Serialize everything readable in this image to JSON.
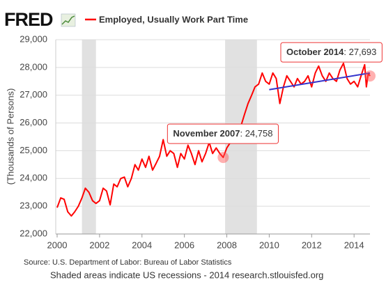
{
  "chart_data": {
    "type": "line",
    "logo": "FRED",
    "y_label": "(Thousands of Persons)",
    "source": "Source: U.S. Department of Labor: Bureau of Labor Statistics",
    "footer": "Shaded areas indicate US recessions - 2014 research.stlouisfed.org",
    "xlim": [
      2000,
      2014.75
    ],
    "ylim": [
      22000,
      29000
    ],
    "xticks": [
      2000,
      2002,
      2004,
      2006,
      2008,
      2010,
      2012,
      2014
    ],
    "yticks": [
      {
        "value": 22000,
        "label": "22,000"
      },
      {
        "value": 23000,
        "label": "23,000"
      },
      {
        "value": 24000,
        "label": "24,000"
      },
      {
        "value": 25000,
        "label": "25,000"
      },
      {
        "value": 26000,
        "label": "26,000"
      },
      {
        "value": 27000,
        "label": "27,000"
      },
      {
        "value": 28000,
        "label": "28,000"
      },
      {
        "value": 29000,
        "label": "29,000"
      }
    ],
    "grid": true,
    "recessions": [
      [
        2001.17,
        2001.83
      ],
      [
        2007.92,
        2009.42
      ]
    ],
    "recession_color": "#e1e1e1",
    "series": [
      {
        "name": "Employed, Usually Work Part Time",
        "color": "#ff0000",
        "x": [
          2000.0,
          2000.17,
          2000.33,
          2000.5,
          2000.67,
          2000.83,
          2001.0,
          2001.17,
          2001.33,
          2001.5,
          2001.67,
          2001.83,
          2002.0,
          2002.17,
          2002.33,
          2002.5,
          2002.67,
          2002.83,
          2003.0,
          2003.17,
          2003.33,
          2003.5,
          2003.67,
          2003.83,
          2004.0,
          2004.17,
          2004.33,
          2004.5,
          2004.67,
          2004.83,
          2005.0,
          2005.17,
          2005.33,
          2005.5,
          2005.67,
          2005.83,
          2006.0,
          2006.17,
          2006.33,
          2006.5,
          2006.67,
          2006.83,
          2007.0,
          2007.17,
          2007.33,
          2007.5,
          2007.67,
          2007.83,
          2008.0,
          2008.17,
          2008.33,
          2008.5,
          2008.67,
          2008.83,
          2009.0,
          2009.17,
          2009.33,
          2009.5,
          2009.67,
          2009.83,
          2010.0,
          2010.17,
          2010.33,
          2010.5,
          2010.67,
          2010.83,
          2011.0,
          2011.17,
          2011.33,
          2011.5,
          2011.67,
          2011.83,
          2012.0,
          2012.17,
          2012.33,
          2012.5,
          2012.67,
          2012.83,
          2013.0,
          2013.17,
          2013.33,
          2013.5,
          2013.67,
          2013.83,
          2014.0,
          2014.17,
          2014.33,
          2014.5,
          2014.58,
          2014.67,
          2014.75
        ],
        "values": [
          22950,
          23300,
          23250,
          22800,
          22650,
          22800,
          23000,
          23300,
          23650,
          23500,
          23200,
          23100,
          23200,
          23650,
          23550,
          23050,
          23800,
          23700,
          24000,
          24050,
          23700,
          24000,
          24500,
          24300,
          24700,
          24400,
          24800,
          24300,
          24550,
          24800,
          25400,
          24800,
          25000,
          24900,
          24400,
          24900,
          24700,
          25200,
          24900,
          24500,
          25000,
          24600,
          24900,
          25300,
          24900,
          25100,
          24900,
          24758,
          25100,
          25300,
          25500,
          25600,
          25900,
          26300,
          26700,
          27000,
          27300,
          27400,
          27800,
          27500,
          27400,
          27800,
          27600,
          26700,
          27300,
          27700,
          27500,
          27300,
          27600,
          27400,
          27500,
          27700,
          27300,
          27800,
          28050,
          27700,
          27500,
          27800,
          27600,
          27500,
          27900,
          28150,
          27600,
          27400,
          27500,
          27300,
          27700,
          28100,
          27300,
          27800,
          27693
        ]
      }
    ],
    "trend": {
      "color": "#3333cc",
      "x": [
        2010,
        2014.75
      ],
      "values": [
        27200,
        27800
      ]
    },
    "annotations": [
      {
        "label": "November 2007",
        "value_label": ": 24,758",
        "x": 2007.83,
        "value": 24758
      },
      {
        "label": "October 2014",
        "value_label": ": 27,693",
        "x": 2014.75,
        "value": 27693
      }
    ]
  }
}
